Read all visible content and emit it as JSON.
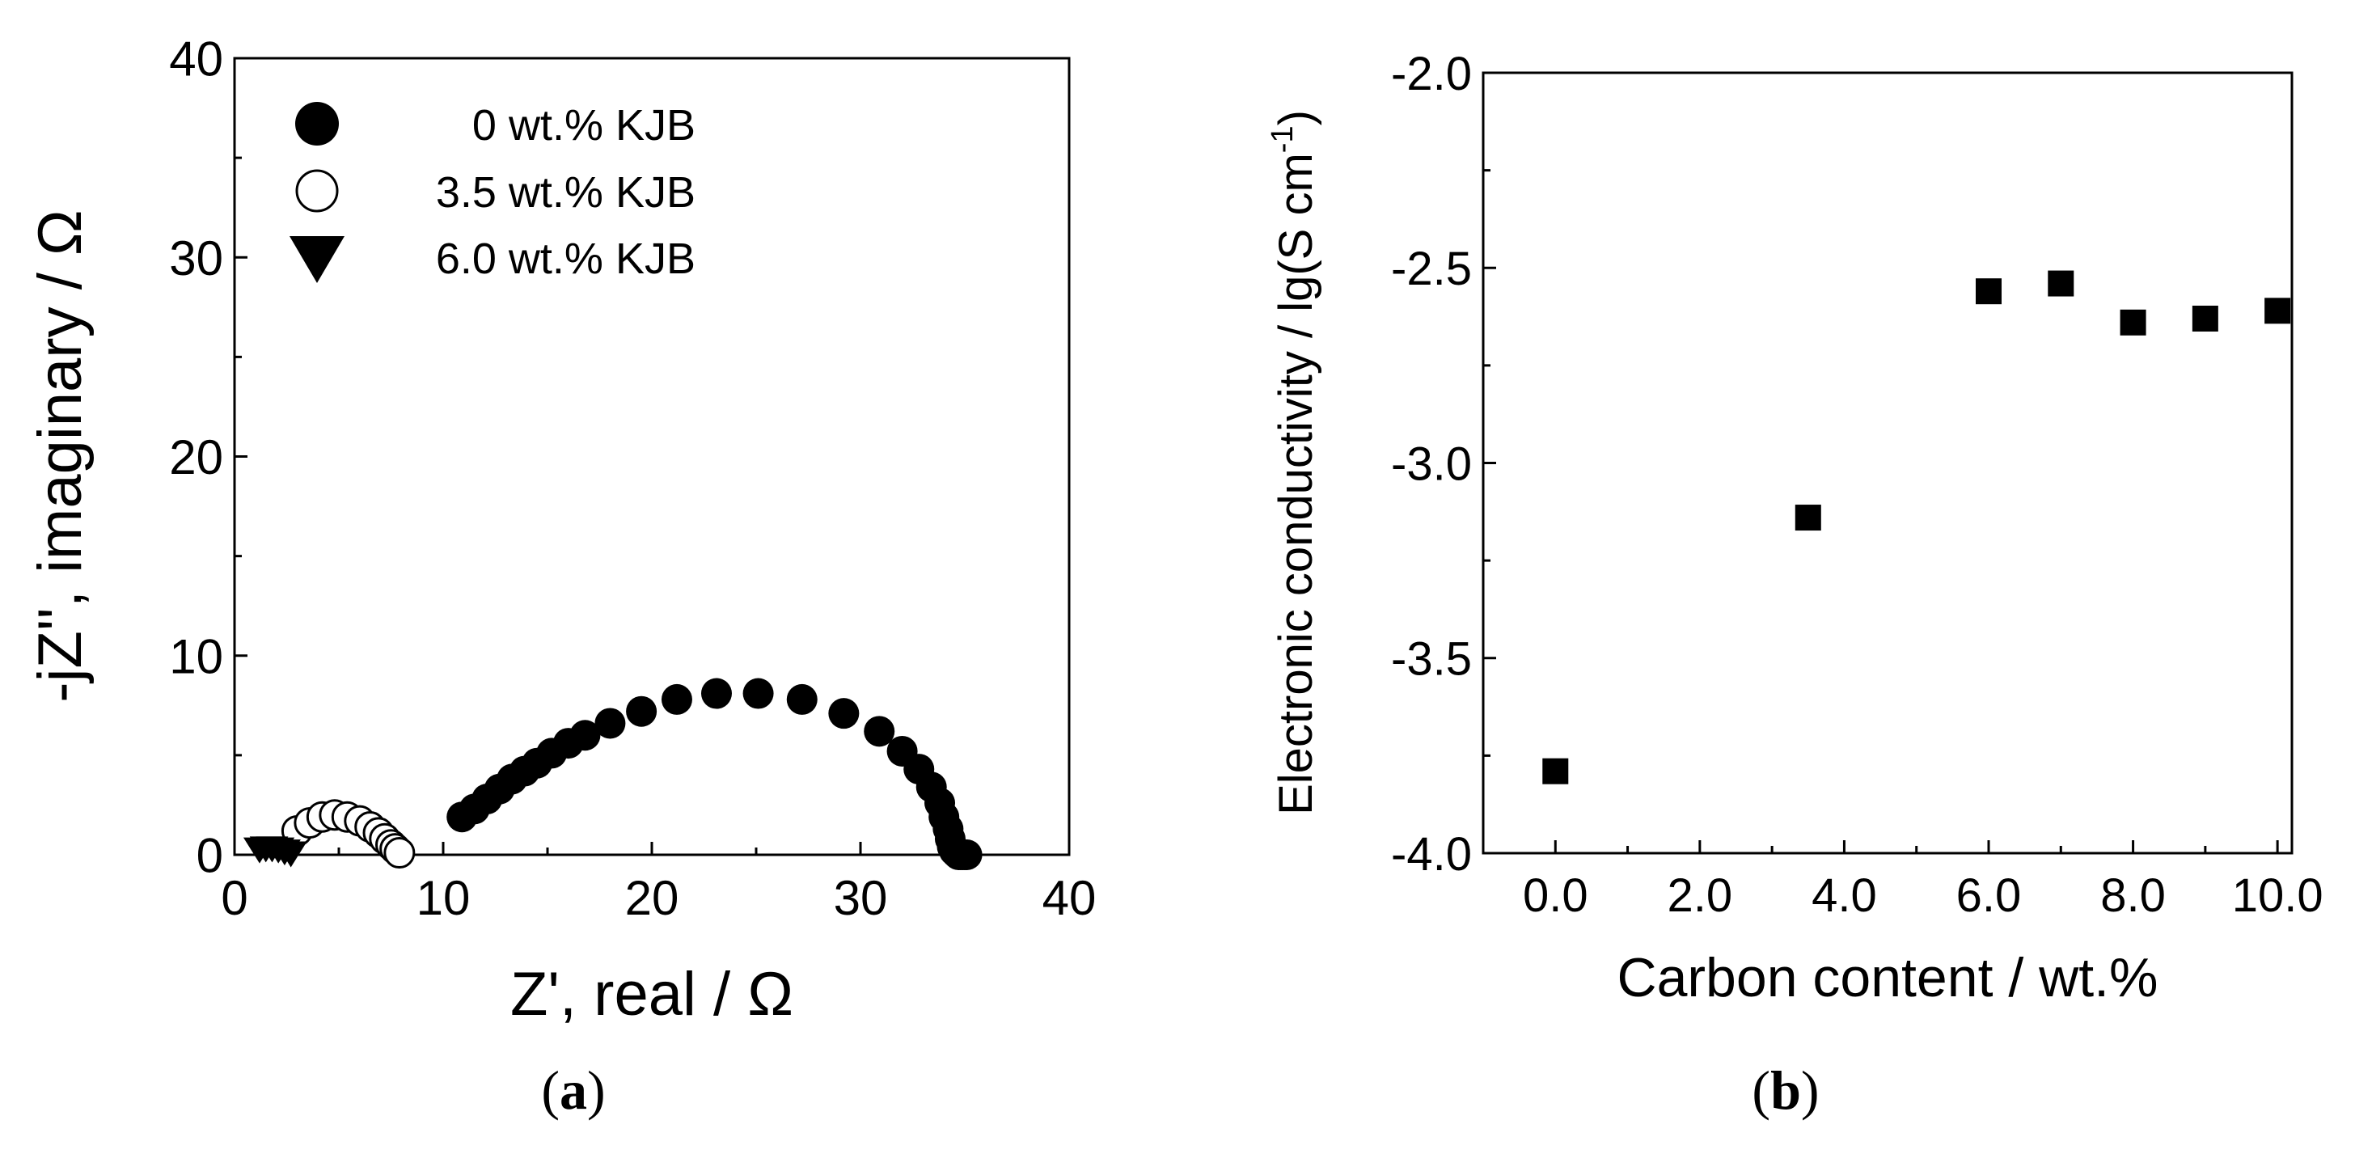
{
  "chart_data": [
    {
      "type": "scatter",
      "panel": "(a)",
      "panel_label": "a",
      "xlabel": "Z', real / Ω",
      "ylabel": "-jZ'', imaginary / Ω",
      "xlim": [
        0,
        40
      ],
      "ylim": [
        0,
        40
      ],
      "xticks": [
        0,
        10,
        20,
        30,
        40
      ],
      "yticks": [
        0,
        10,
        20,
        30,
        40
      ],
      "xtick_labels": [
        "0",
        "10",
        "20",
        "30",
        "40"
      ],
      "ytick_labels": [
        "0",
        "10",
        "20",
        "30",
        "40"
      ],
      "grid": false,
      "legend_position": "top-left",
      "series": [
        {
          "name": "0 wt.% KJB",
          "marker": "filled-circle",
          "x": [
            10.9,
            11.5,
            12.1,
            12.7,
            13.3,
            13.9,
            14.5,
            15.2,
            16.0,
            16.8,
            18.0,
            19.5,
            21.2,
            23.1,
            25.1,
            27.2,
            29.2,
            30.9,
            32.0,
            32.8,
            33.4,
            33.8,
            34.0,
            34.2,
            34.3,
            34.4,
            34.5,
            34.6,
            34.7,
            34.8,
            34.9,
            35.0,
            35.1
          ],
          "y": [
            1.9,
            2.3,
            2.8,
            3.3,
            3.8,
            4.2,
            4.6,
            5.1,
            5.6,
            6.0,
            6.6,
            7.2,
            7.8,
            8.1,
            8.1,
            7.8,
            7.1,
            6.2,
            5.2,
            4.3,
            3.4,
            2.6,
            1.9,
            1.3,
            0.8,
            0.4,
            0.2,
            0.1,
            0.0,
            0.0,
            0.0,
            0.0,
            0.0
          ]
        },
        {
          "name": "3.5 wt.% KJB",
          "marker": "open-circle",
          "x": [
            3.0,
            3.6,
            4.2,
            4.8,
            5.4,
            6.0,
            6.5,
            6.9,
            7.2,
            7.5,
            7.7,
            7.9
          ],
          "y": [
            1.2,
            1.6,
            1.9,
            2.0,
            1.9,
            1.7,
            1.4,
            1.1,
            0.8,
            0.5,
            0.3,
            0.1
          ]
        },
        {
          "name": "6.0 wt.% KJB",
          "marker": "filled-triangle-down",
          "x": [
            1.2,
            1.5,
            1.8,
            2.1,
            2.4,
            2.7
          ],
          "y": [
            0.3,
            0.35,
            0.35,
            0.3,
            0.2,
            0.1
          ]
        }
      ]
    },
    {
      "type": "scatter",
      "panel": "(b)",
      "panel_label": "b",
      "xlabel": "Carbon content / wt.%",
      "ylabel": "Electronic conductivity / lg(S cm",
      "ylabel_sup": "-1",
      "ylabel_end": ")",
      "xlim": [
        -1,
        10.2
      ],
      "ylim": [
        -4.0,
        -2.0
      ],
      "xticks": [
        0,
        2,
        4,
        6,
        8,
        10
      ],
      "yticks": [
        -4.0,
        -3.5,
        -3.0,
        -2.5,
        -2.0
      ],
      "xtick_labels": [
        "0.0",
        "2.0",
        "4.0",
        "6.0",
        "8.0",
        "10.0"
      ],
      "ytick_labels": [
        "-4.0",
        "-3.5",
        "-3.0",
        "-2.5",
        "-2.0"
      ],
      "grid": false,
      "series": [
        {
          "marker": "filled-square",
          "x": [
            0.0,
            3.5,
            6.0,
            7.0,
            8.0,
            9.0,
            10.0
          ],
          "y": [
            -3.79,
            -3.14,
            -2.56,
            -2.54,
            -2.64,
            -2.63,
            -2.61
          ]
        }
      ]
    }
  ]
}
